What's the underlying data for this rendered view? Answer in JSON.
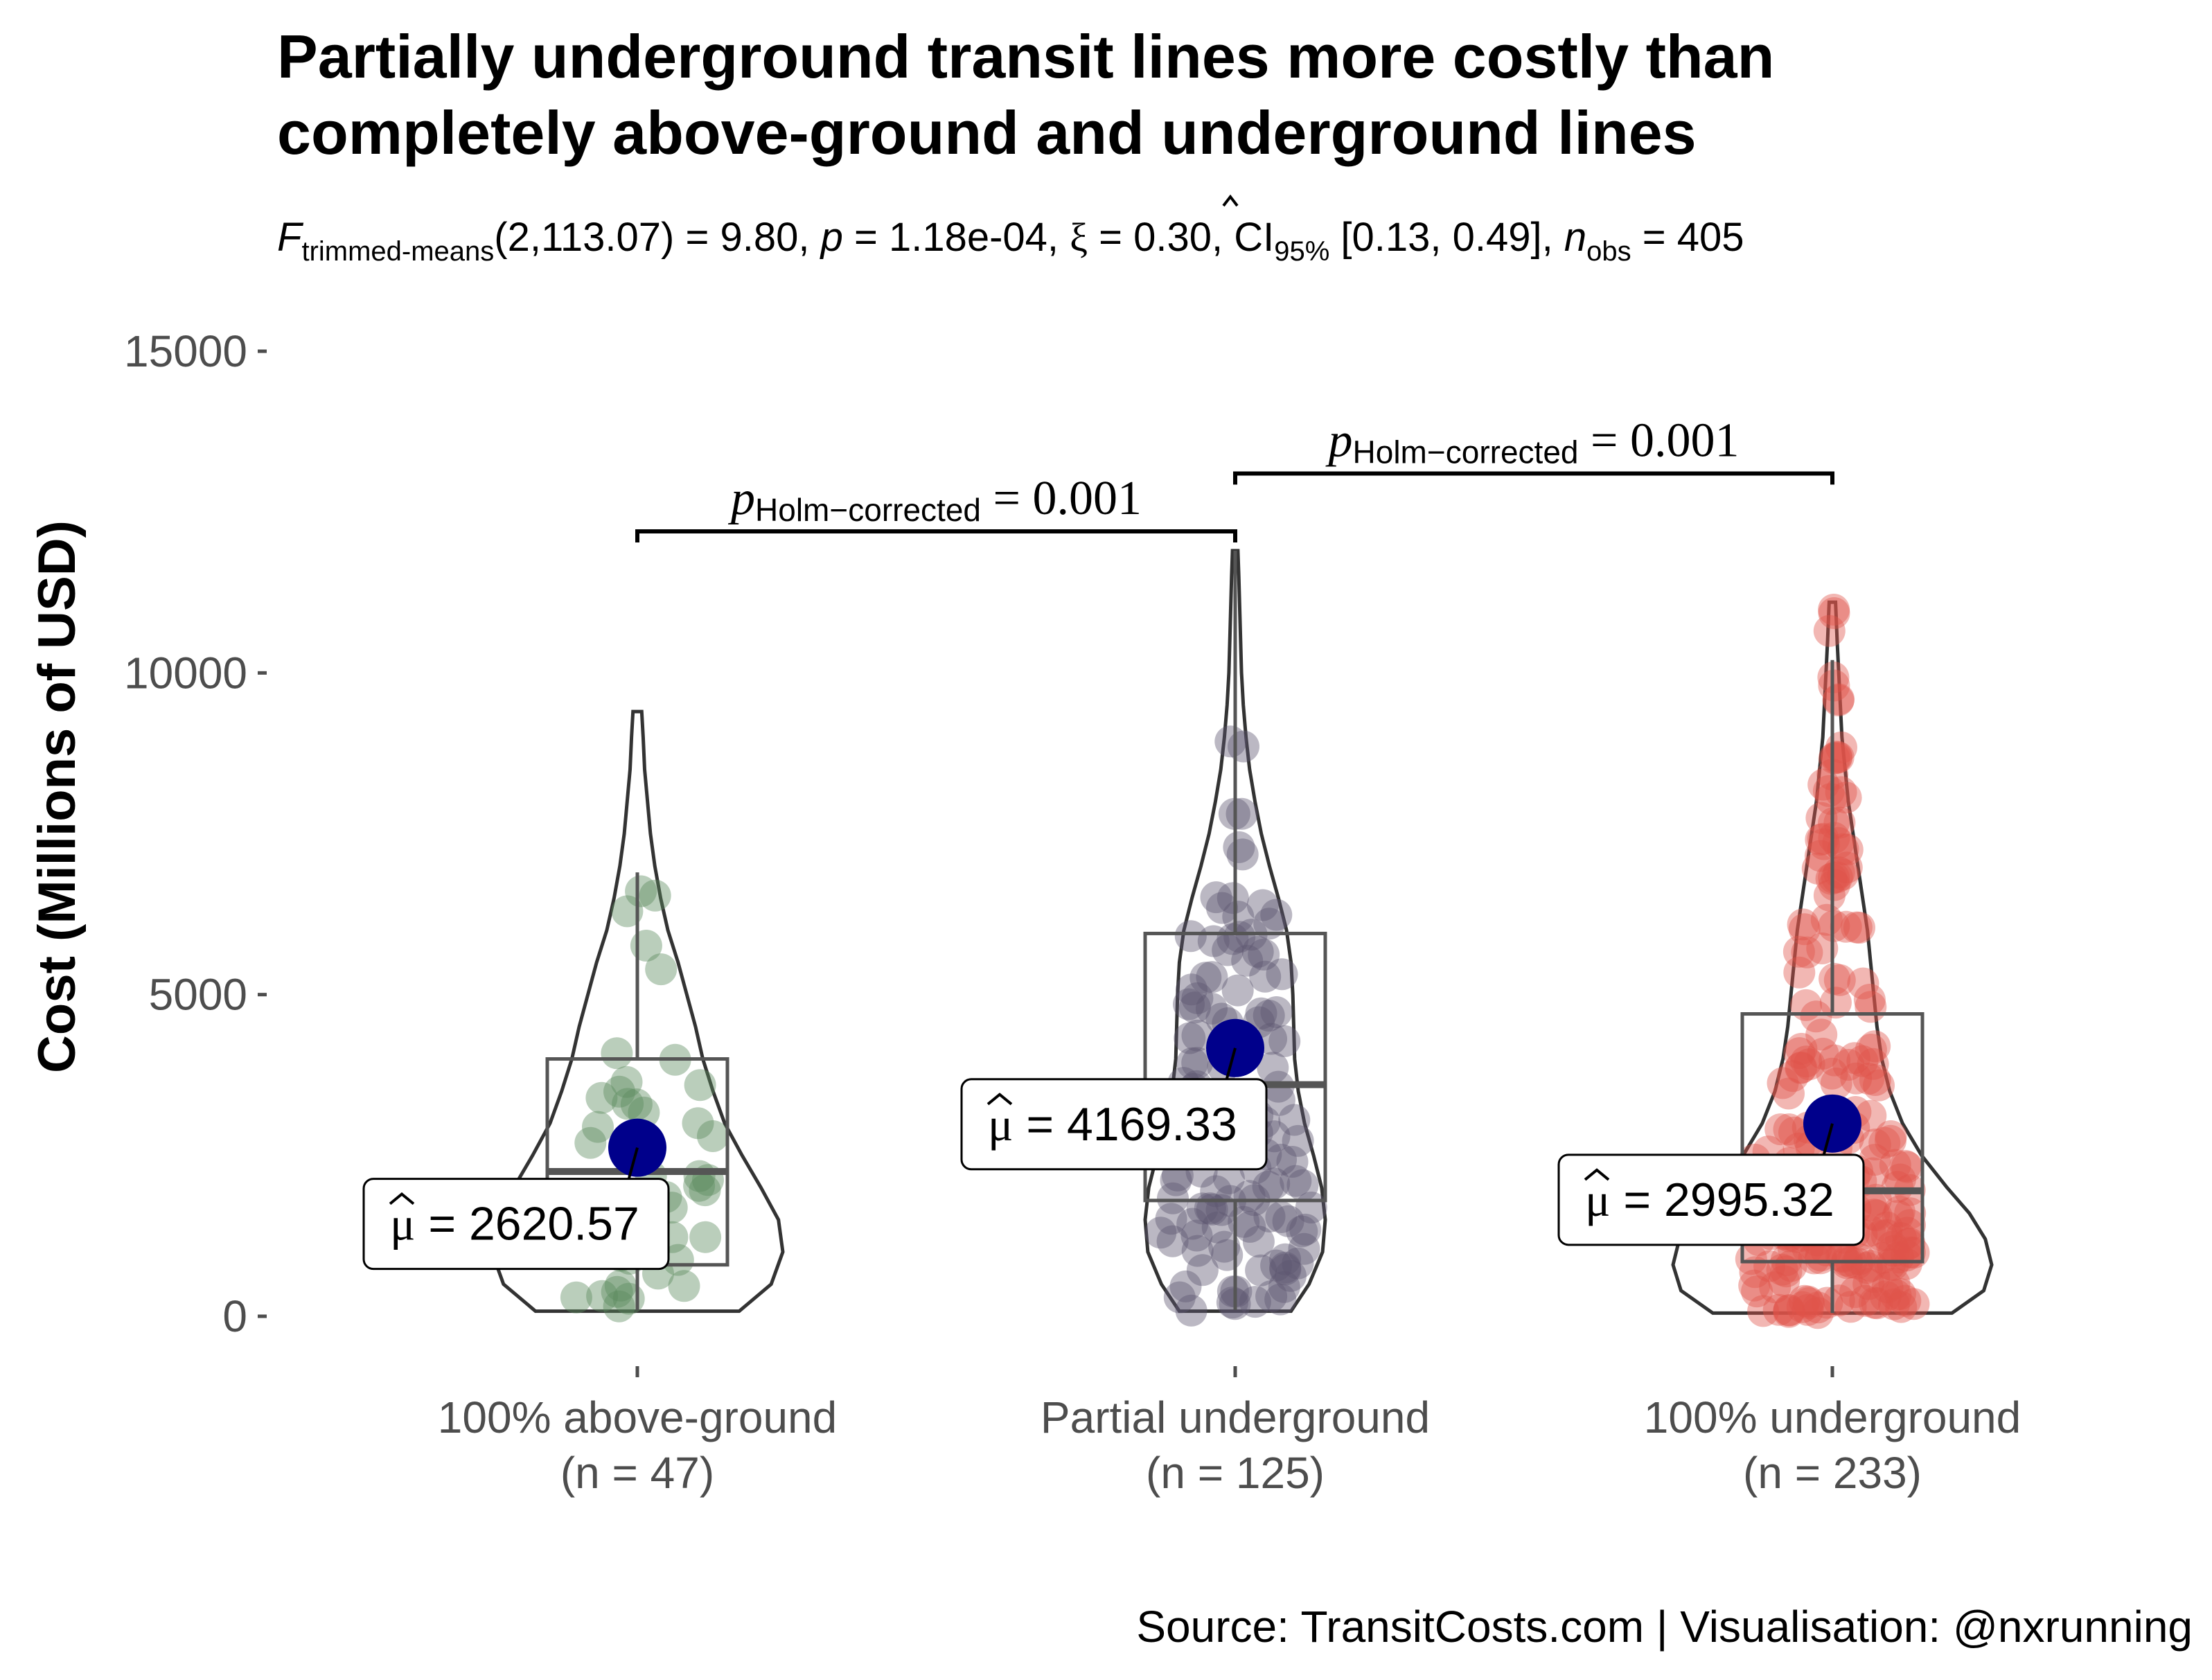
{
  "title_lines": [
    "Partially underground transit lines more costly than",
    "completely above-ground and underground lines"
  ],
  "subtitle": {
    "F": "F",
    "F_sub": "trimmed-means",
    "df_stat": "(2,113.07) = 9.80, ",
    "p": "p",
    "p_val": " = 1.18e-04, ",
    "xi": "ξ",
    "xi_val": " = 0.30, CI",
    "ci_sub": "95%",
    "ci_val": " [0.13, 0.49], ",
    "n": "n",
    "n_sub": "obs",
    "n_val": " = 405"
  },
  "caption": "Source: TransitCosts.com | Visualisation: @nxrunning",
  "colors": {
    "group1": "#5b8a5e",
    "group2": "#5e5570",
    "group3": "#e0534a",
    "mean_point": "#00008b",
    "outline": "#333333",
    "tick": "#4d4d4d"
  },
  "pairwise": [
    {
      "p": "p",
      "sub": "Holm−corrected",
      "value": " = 0.001",
      "from": 0,
      "to": 1,
      "y": 12200
    },
    {
      "p": "p",
      "sub": "Holm−corrected",
      "value": " = 0.001",
      "from": 1,
      "to": 2,
      "y": 13100
    }
  ],
  "mean_labels": [
    {
      "mu": "μ",
      "text": " = 2620.57"
    },
    {
      "mu": "μ",
      "text": " = 4169.33"
    },
    {
      "mu": "μ",
      "text": " = 2995.32"
    }
  ],
  "chart_data": {
    "type": "violin-box-scatter",
    "title": "Partially underground transit lines more costly than completely above-ground and underground lines",
    "ylabel": "Cost (Millions of USD)",
    "xlabel": "",
    "ylim": [
      -700,
      15400
    ],
    "y_ticks": [
      0,
      5000,
      10000,
      15000
    ],
    "y_tick_labels": [
      "0",
      "5000",
      "10000",
      "15000"
    ],
    "grid": false,
    "categories": [
      "100% above-ground",
      "Partial underground",
      "100% underground"
    ],
    "category_n": [
      "(n = 47)",
      "(n = 125)",
      "(n = 233)"
    ],
    "groups": [
      {
        "name": "100% above-ground",
        "n": 47,
        "mean": 2620.57,
        "box": {
          "q1": 800,
          "median": 2250,
          "q3": 4000,
          "whisker_low": 100,
          "whisker_high": 6900
        },
        "violin": {
          "ymin": 80,
          "ymax": 9400,
          "density": [
            [
              80,
              0.7
            ],
            [
              500,
              0.92
            ],
            [
              1000,
              1.0
            ],
            [
              1500,
              0.97
            ],
            [
              2000,
              0.85
            ],
            [
              2500,
              0.72
            ],
            [
              3000,
              0.6
            ],
            [
              3500,
              0.52
            ],
            [
              4000,
              0.45
            ],
            [
              4500,
              0.4
            ],
            [
              5000,
              0.34
            ],
            [
              5500,
              0.28
            ],
            [
              6000,
              0.21
            ],
            [
              6500,
              0.16
            ],
            [
              7000,
              0.12
            ],
            [
              7500,
              0.09
            ],
            [
              8000,
              0.07
            ],
            [
              8500,
              0.05
            ],
            [
              9000,
              0.04
            ],
            [
              9400,
              0.03
            ]
          ]
        }
      },
      {
        "name": "Partial underground",
        "n": 125,
        "mean": 4169.33,
        "box": {
          "q1": 1800,
          "median": 3600,
          "q3": 5950,
          "whisker_low": 100,
          "whisker_high": 11900
        },
        "violin": {
          "ymin": 80,
          "ymax": 11900,
          "density": [
            [
              80,
              0.62
            ],
            [
              500,
              0.82
            ],
            [
              1000,
              0.97
            ],
            [
              1500,
              1.0
            ],
            [
              2000,
              0.96
            ],
            [
              2500,
              0.87
            ],
            [
              3000,
              0.77
            ],
            [
              3500,
              0.7
            ],
            [
              4000,
              0.66
            ],
            [
              4500,
              0.65
            ],
            [
              5000,
              0.64
            ],
            [
              5500,
              0.62
            ],
            [
              6000,
              0.57
            ],
            [
              6500,
              0.48
            ],
            [
              7000,
              0.38
            ],
            [
              7500,
              0.29
            ],
            [
              8000,
              0.22
            ],
            [
              8500,
              0.16
            ],
            [
              9000,
              0.12
            ],
            [
              9500,
              0.09
            ],
            [
              10000,
              0.07
            ],
            [
              10500,
              0.06
            ],
            [
              11000,
              0.05
            ],
            [
              11500,
              0.04
            ],
            [
              11900,
              0.03
            ]
          ]
        }
      },
      {
        "name": "100% underground",
        "n": 233,
        "mean": 2995.32,
        "box": {
          "q1": 850,
          "median": 1950,
          "q3": 4700,
          "whisker_low": 50,
          "whisker_high": 10200
        },
        "violin": {
          "ymin": 50,
          "ymax": 11100,
          "density": [
            [
              50,
              0.75
            ],
            [
              400,
              0.95
            ],
            [
              800,
              1.0
            ],
            [
              1200,
              0.96
            ],
            [
              1600,
              0.86
            ],
            [
              2000,
              0.72
            ],
            [
              2500,
              0.56
            ],
            [
              3000,
              0.44
            ],
            [
              3500,
              0.36
            ],
            [
              4000,
              0.31
            ],
            [
              4500,
              0.28
            ],
            [
              5000,
              0.26
            ],
            [
              5500,
              0.24
            ],
            [
              6000,
              0.22
            ],
            [
              6500,
              0.19
            ],
            [
              7000,
              0.16
            ],
            [
              7500,
              0.13
            ],
            [
              8000,
              0.1
            ],
            [
              8500,
              0.08
            ],
            [
              9000,
              0.06
            ],
            [
              9500,
              0.05
            ],
            [
              10000,
              0.04
            ],
            [
              10500,
              0.03
            ],
            [
              11100,
              0.02
            ]
          ]
        }
      }
    ]
  }
}
